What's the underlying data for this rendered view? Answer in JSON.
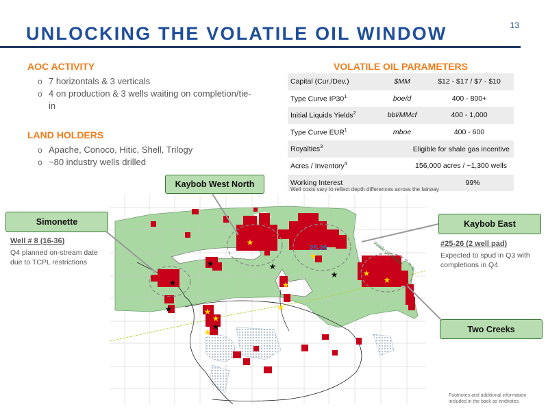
{
  "page_number": "13",
  "title": "UNLOCKING THE VOLATILE OIL WINDOW",
  "aoc": {
    "heading": "AOC ACTIVITY",
    "bullets": [
      "7 horizontals & 3 verticals",
      "4 on production & 3 wells waiting on completion/tie-in"
    ]
  },
  "land": {
    "heading": "LAND HOLDERS",
    "bullets": [
      "Apache, Conoco, Hitic, Shell, Trilogy",
      "~80 industry wells drilled"
    ]
  },
  "parameters": {
    "heading": "VOLATILE OIL PARAMETERS",
    "rows": [
      {
        "label": "Capital (Cur./Dev.)",
        "sup": "",
        "unit": "$MM",
        "value": "$12 - $17 / $7 - $10"
      },
      {
        "label": "Type Curve IP30",
        "sup": "1",
        "unit": "boe/d",
        "value": "400 - 800+"
      },
      {
        "label": "Initial Liquids Yields",
        "sup": "2",
        "unit": "bbl/MMcf",
        "value": "400 - 1,000"
      },
      {
        "label": "Type Curve EUR",
        "sup": "1",
        "unit": "mboe",
        "value": "400 - 600"
      },
      {
        "label": "Royalties",
        "sup": "3",
        "unit": "",
        "value": "Eligible for shale gas incentive"
      },
      {
        "label": "Acres / Inventory",
        "sup": "4",
        "unit": "",
        "value": "156,000 acres / ~1,300 wells"
      },
      {
        "label": "Working Interest",
        "sup": "",
        "unit": "",
        "value": "99%"
      }
    ],
    "note": "Well costs vary to reflect depth differences across the fairway"
  },
  "map_labels": {
    "kaybob_west_north": "Kaybob West North",
    "simonette": "Simonette",
    "kaybob_east": "Kaybob East",
    "two_creeks": "Two Creeks",
    "pad_label": "25-26",
    "fairway_label": "Volatile Oil Window"
  },
  "callouts": {
    "well8_head": "Well # 8 (16-36)",
    "well8_text_1": "Q4 planned on-stream date",
    "well8_text_2": "due to TCPL restrictions",
    "pad_head": "#25-26 (2 well pad)",
    "pad_text_1": "Expected to spud in Q3 with",
    "pad_text_2": "completions in Q4"
  },
  "footnote_1": "Footnotes and additional information",
  "footnote_2": "included in the back as endnotes.",
  "colors": {
    "title_blue": "#1f4e9a",
    "accent_orange": "#f07d1c",
    "fairway_green": "#a9d8a2",
    "land_red": "#c8001a",
    "label_green": "#b8ddb0"
  }
}
